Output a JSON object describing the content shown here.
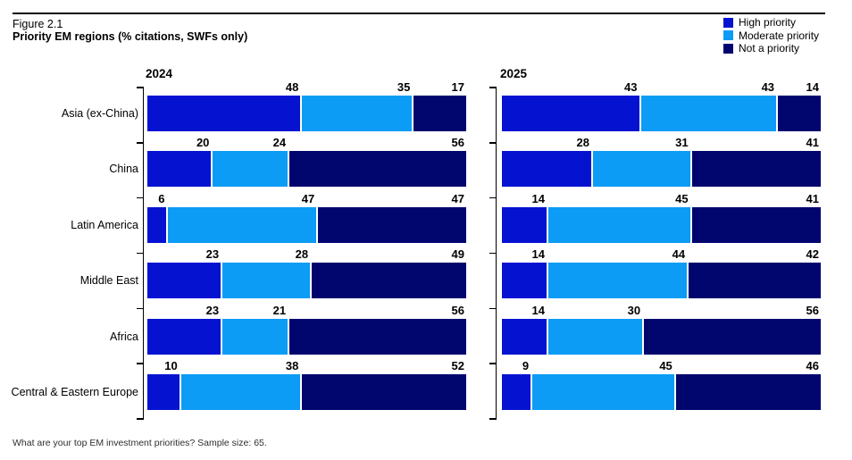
{
  "figure": {
    "label": "Figure 2.1",
    "title": "Priority EM regions (% citations, SWFs only)",
    "footnote": "What are your top EM investment priorities? Sample size: 65."
  },
  "colors": {
    "high_priority": "#0513d1",
    "moderate_priority": "#0c9cf5",
    "not_a_priority": "#00066e"
  },
  "legend": {
    "position": "top-right",
    "items": [
      {
        "label": "High priority",
        "color_key": "high_priority"
      },
      {
        "label": "Moderate priority",
        "color_key": "moderate_priority"
      },
      {
        "label": "Not a priority",
        "color_key": "not_a_priority"
      }
    ]
  },
  "chart_data": {
    "type": "bar",
    "orientation": "horizontal",
    "stacked": true,
    "unit": "% citations",
    "xlim": [
      0,
      100
    ],
    "grid": false,
    "value_labels": "above segment, right-aligned to segment end",
    "categories": [
      "Asia (ex-China)",
      "China",
      "Latin America",
      "Middle East",
      "Africa",
      "Central & Eastern Europe"
    ],
    "groups": [
      {
        "label": "2024",
        "series": [
          {
            "name": "High priority",
            "values": [
              48,
              20,
              6,
              23,
              23,
              10
            ]
          },
          {
            "name": "Moderate priority",
            "values": [
              35,
              24,
              47,
              28,
              21,
              38
            ]
          },
          {
            "name": "Not a priority",
            "values": [
              17,
              56,
              47,
              49,
              56,
              52
            ]
          }
        ]
      },
      {
        "label": "2025",
        "series": [
          {
            "name": "High priority",
            "values": [
              43,
              28,
              14,
              14,
              14,
              9
            ]
          },
          {
            "name": "Moderate priority",
            "values": [
              43,
              31,
              45,
              44,
              30,
              45
            ]
          },
          {
            "name": "Not a priority",
            "values": [
              14,
              41,
              41,
              42,
              56,
              46
            ]
          }
        ]
      }
    ]
  }
}
